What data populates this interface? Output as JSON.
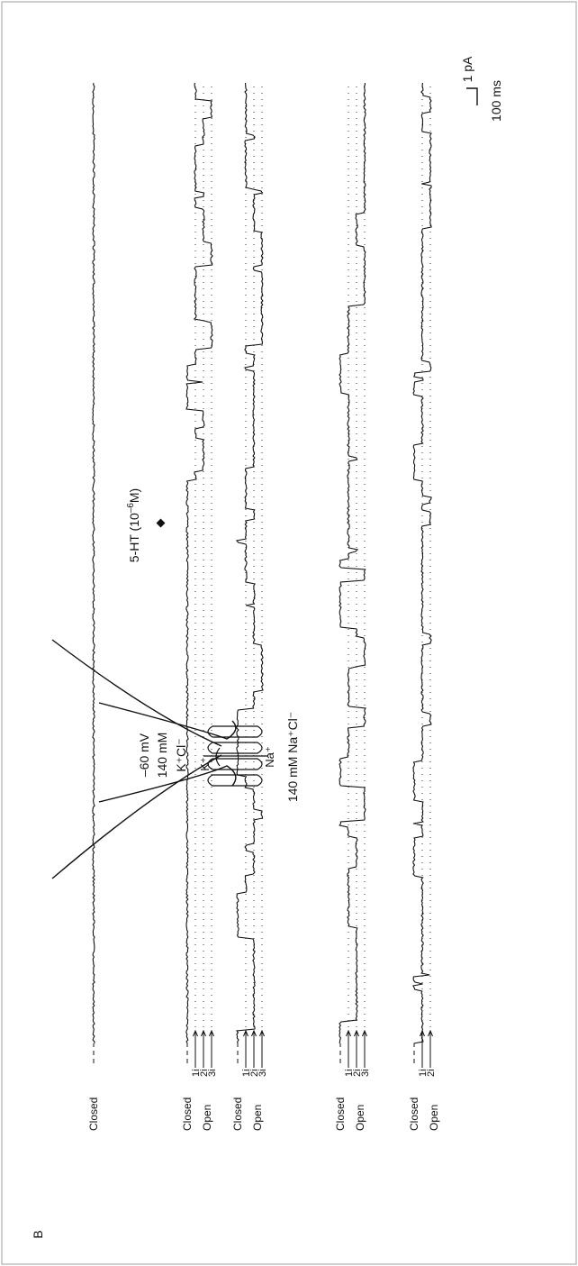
{
  "figure": {
    "panel_label": "B",
    "stimulus": {
      "label": "5-HT (10",
      "exponent": "–6",
      "label_end": "M)"
    },
    "scale_bar": {
      "current": "1 pA",
      "time": "100 ms"
    },
    "pipette": {
      "voltage": "–60 mV",
      "concentration": "140 mM",
      "ions_inside": "K⁺Cl⁻",
      "k_ion": "K⁺",
      "na_ion": "Na⁺",
      "bath": "140 mM Na⁺Cl⁻"
    },
    "traces": [
      {
        "state_labels": [
          "Closed"
        ],
        "levels": [],
        "openings": 0
      },
      {
        "state_labels": [
          "Closed",
          "Open"
        ],
        "levels": [
          "1i",
          "2i",
          "3i"
        ],
        "openings": 3
      },
      {
        "state_labels": [
          "Closed",
          "Open"
        ],
        "levels": [
          "1i",
          "2i",
          "3i"
        ],
        "openings": 3
      },
      {
        "state_labels": [
          "Closed",
          "Open"
        ],
        "levels": [
          "1i",
          "2i",
          "3i"
        ],
        "openings": 3
      },
      {
        "state_labels": [
          "Closed",
          "Open"
        ],
        "levels": [
          "1i",
          "2i"
        ],
        "openings": 2
      }
    ],
    "border_color": "#bdbdbd",
    "ink_color": "#111111"
  }
}
